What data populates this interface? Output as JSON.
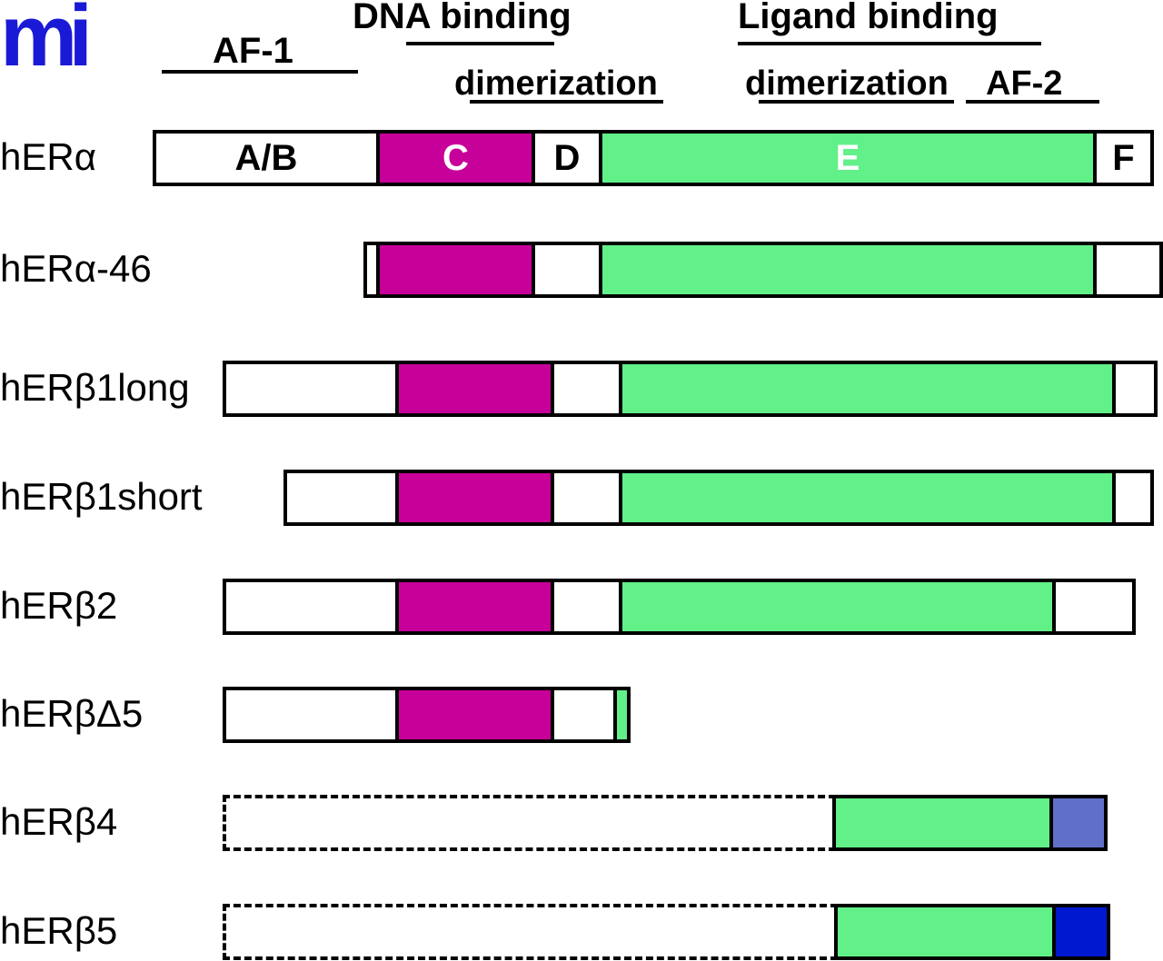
{
  "logo": "mi",
  "header": {
    "af1": "AF-1",
    "dna_binding": "DNA binding",
    "dimerization_1": "dimerization",
    "ligand_binding": "Ligand binding",
    "dimerization_2": "dimerization",
    "af2": "AF-2"
  },
  "domains": {
    "ab": "A/B",
    "c": "C",
    "d": "D",
    "e": "E",
    "f": "F"
  },
  "colors": {
    "dna_binding_C": "#c8009a",
    "ligand_binding_E": "#62f088",
    "beta4_tail": "#6070c8",
    "beta5_tail": "#0018d0",
    "logo": "#1a1ad6"
  },
  "rows": [
    {
      "label": "hERα"
    },
    {
      "label": "hERα-46"
    },
    {
      "label": "hERβ1long"
    },
    {
      "label": "hERβ1short"
    },
    {
      "label": "hERβ2"
    },
    {
      "label": "hERβΔ5"
    },
    {
      "label": "hERβ4"
    },
    {
      "label": "hERβ5"
    }
  ]
}
